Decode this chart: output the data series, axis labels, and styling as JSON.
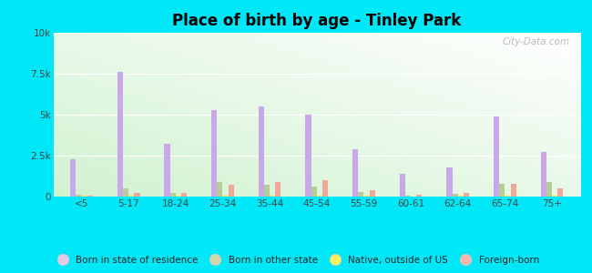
{
  "title": "Place of birth by age - Tinley Park",
  "categories": [
    "<5",
    "5-17",
    "18-24",
    "25-34",
    "35-44",
    "45-54",
    "55-59",
    "60-61",
    "62-64",
    "65-74",
    "75+"
  ],
  "series": {
    "Born in state of residence": [
      2300,
      7600,
      3200,
      5300,
      5500,
      5000,
      2900,
      1400,
      1800,
      4900,
      2700
    ],
    "Born in other state": [
      100,
      500,
      200,
      900,
      700,
      600,
      300,
      50,
      150,
      800,
      900
    ],
    "Native, outside of US": [
      30,
      50,
      80,
      50,
      60,
      50,
      30,
      20,
      30,
      50,
      50
    ],
    "Foreign-born": [
      80,
      200,
      200,
      700,
      900,
      1000,
      400,
      100,
      250,
      800,
      500
    ]
  },
  "colors": {
    "Born in state of residence": "#c8a8e8",
    "Born in other state": "#b8cc99",
    "Native, outside of US": "#f0e060",
    "Foreign-born": "#f0a898"
  },
  "legend_colors": {
    "Born in state of residence": "#e8c8e8",
    "Born in other state": "#d0d8a8",
    "Native, outside of US": "#f8f060",
    "Foreign-born": "#f8b8b0"
  },
  "ylim": [
    0,
    10000
  ],
  "yticks": [
    0,
    2500,
    5000,
    7500,
    10000
  ],
  "ytick_labels": [
    "0",
    "2.5k",
    "5k",
    "7.5k",
    "10k"
  ],
  "background_outer": "#00e8f8",
  "bar_width": 0.12,
  "figsize": [
    6.5,
    3.0
  ],
  "dpi": 100
}
